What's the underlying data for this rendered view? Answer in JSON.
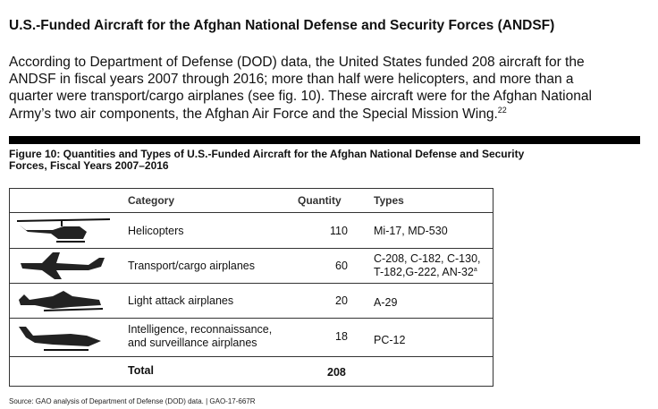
{
  "header": {
    "title": "U.S.-Funded Aircraft for the Afghan National Defense and Security Forces (ANDSF)"
  },
  "paragraph": {
    "lines": [
      "According to Department of Defense (DOD) data, the United States funded 208 aircraft for the",
      "ANDSF in fiscal years 2007 through 2016; more than half were helicopters, and more than a",
      "quarter were transport/cargo airplanes (see fig. 10). These aircraft were for the Afghan National",
      "Army’s two air components, the Afghan Air Force and the Special Mission Wing."
    ],
    "footnote": "22"
  },
  "figure": {
    "title_lines": [
      "Figure 10: Quantities and Types of U.S.-Funded Aircraft for the Afghan National Defense and Security",
      "Forces, Fiscal Years 2007–2016"
    ]
  },
  "table": {
    "columns": [
      "Category",
      "Quantity",
      "Types"
    ],
    "rows": [
      {
        "category": [
          "Helicopters"
        ],
        "quantity": "110",
        "types": [
          "Mi-17, MD-530"
        ]
      },
      {
        "category": [
          "Transport/cargo airplanes"
        ],
        "quantity": "60",
        "types": [
          "C-208, C-182, C-130,",
          "T-182,G-222, AN-32"
        ],
        "note": "a"
      },
      {
        "category": [
          "Light attack airplanes"
        ],
        "quantity": "20",
        "types": [
          "A-29"
        ]
      },
      {
        "category": [
          "Intelligence, reconnaissance,",
          "and surveillance airplanes"
        ],
        "quantity": "18",
        "types": [
          "PC-12"
        ]
      }
    ],
    "total": {
      "label": "Total",
      "quantity": "208"
    }
  },
  "source": "Source: GAO analysis of Department of Defense (DOD) data.  |  GAO-17-667R"
}
